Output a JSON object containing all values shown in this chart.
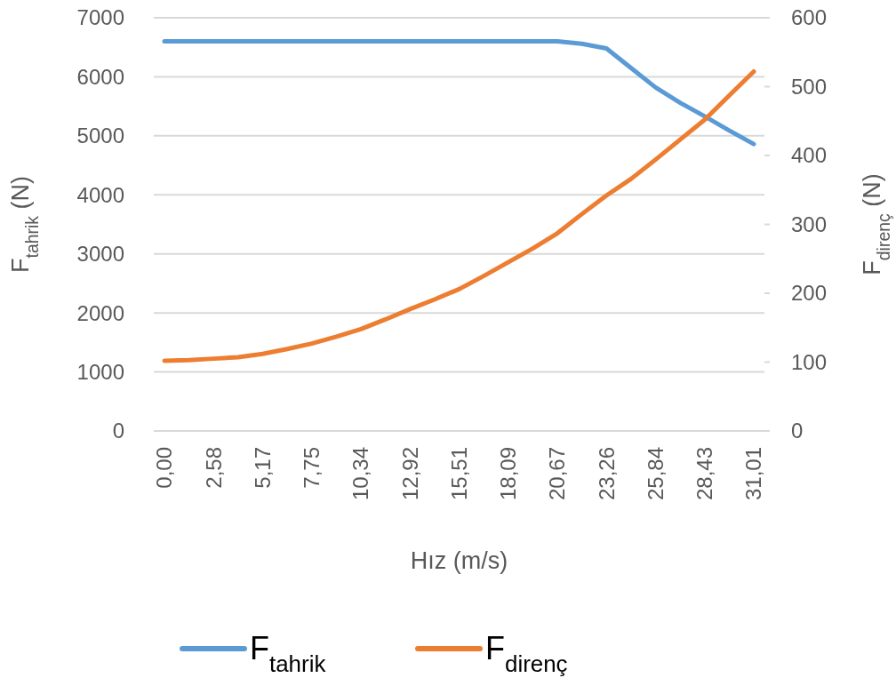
{
  "chart_data": {
    "type": "line",
    "xlabel": "Hız (m/s)",
    "ylabel": "F$_{tahrik}$ (N)",
    "y2label": "F$_{direnç}$ (N)",
    "categories": [
      "0,00",
      null,
      "2,58",
      null,
      "5,17",
      null,
      "7,75",
      null,
      "10,34",
      null,
      "12,92",
      null,
      "15,51",
      null,
      "18,09",
      null,
      "20,67",
      null,
      "23,26",
      null,
      "25,84",
      null,
      "28,43",
      null,
      "31,01"
    ],
    "series": [
      {
        "name": "F$_{tahrik}$",
        "color": "#5b9bd5",
        "values": [
          6600,
          6600,
          6600,
          6600,
          6600,
          6600,
          6600,
          6600,
          6600,
          6600,
          6600,
          6600,
          6600,
          6600,
          6600,
          6600,
          6600,
          6560,
          6480,
          6150,
          5820,
          5560,
          5330,
          5090,
          4860
        ]
      },
      {
        "name": "F$_{direnç}$",
        "color": "#ed7d31",
        "axis": "y2",
        "values": [
          102,
          103,
          105,
          107,
          112,
          119,
          127,
          137,
          148,
          162,
          177,
          191,
          206,
          225,
          245,
          265,
          287,
          315,
          342,
          366,
          394,
          423,
          452,
          487,
          522
        ]
      }
    ],
    "ylim": [
      0,
      7000
    ],
    "yticks": [
      0,
      1000,
      2000,
      3000,
      4000,
      5000,
      6000,
      7000
    ],
    "y2lim": [
      0,
      600
    ],
    "y2ticks": [
      0,
      100,
      200,
      300,
      400,
      500,
      600
    ],
    "grid": "y",
    "legend": "bottom",
    "marker": "none",
    "line_style": "solid"
  }
}
